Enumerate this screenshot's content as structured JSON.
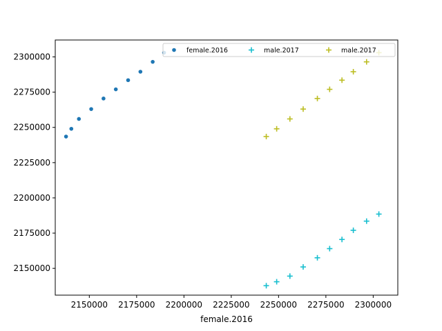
{
  "chart_data": {
    "type": "scatter",
    "title": "",
    "xlabel": "female.2016",
    "ylabel": "",
    "xlim": [
      2132000,
      2313000
    ],
    "ylim": [
      2131000,
      2312000
    ],
    "x_ticks": [
      2150000,
      2175000,
      2200000,
      2225000,
      2250000,
      2275000,
      2300000
    ],
    "y_ticks": [
      2150000,
      2175000,
      2200000,
      2225000,
      2250000,
      2275000,
      2300000
    ],
    "x_tick_labels": [
      "2150000",
      "2175000",
      "2200000",
      "2225000",
      "2250000",
      "2275000",
      "2300000"
    ],
    "y_tick_labels": [
      "2150000",
      "2175000",
      "2200000",
      "2225000",
      "2250000",
      "2275000",
      "2300000"
    ],
    "grid": false,
    "legend": {
      "placement": "top-right",
      "columns": 3
    },
    "series": [
      {
        "name": "female.2016",
        "marker": "dot",
        "color": "#1f77b4",
        "x": [
          2137700,
          2140500,
          2144500,
          2151000,
          2157500,
          2164000,
          2170500,
          2177000,
          2183500,
          2189500
        ],
        "y": [
          2243500,
          2249000,
          2256000,
          2263000,
          2270500,
          2277000,
          2283500,
          2289500,
          2296500,
          2303000
        ]
      },
      {
        "name": "male.2017",
        "marker": "plus",
        "color": "#17becf",
        "x": [
          2243500,
          2249000,
          2256000,
          2263000,
          2270500,
          2277000,
          2283500,
          2289500,
          2296500,
          2303000
        ],
        "y": [
          2137700,
          2140500,
          2144500,
          2151000,
          2157500,
          2164000,
          2170500,
          2177000,
          2183500,
          2188500
        ]
      },
      {
        "name": "male.2017",
        "marker": "plus",
        "color": "#bcbd22",
        "x": [
          2243500,
          2249000,
          2256000,
          2263000,
          2270500,
          2277000,
          2283500,
          2289500,
          2296500,
          2303000
        ],
        "y": [
          2243500,
          2249000,
          2256000,
          2263000,
          2270500,
          2277000,
          2283500,
          2289500,
          2296500,
          2303000
        ]
      }
    ]
  }
}
